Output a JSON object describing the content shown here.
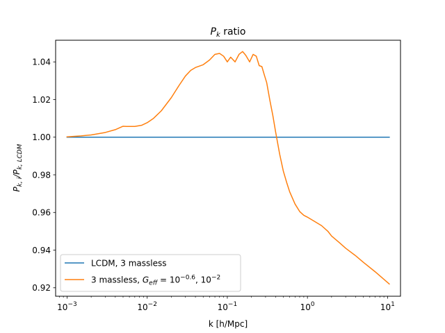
{
  "chart_data": {
    "type": "line",
    "title_main": "P",
    "title_sub": "k",
    "title_rest": " ratio",
    "xlabel": "k [h/Mpc]",
    "ylabel_main": "P",
    "ylabel_sub": "k, i",
    "ylabel_mid": "/P",
    "ylabel_sub2": "k, LCDM",
    "xscale": "log",
    "xlim": [
      0.00072,
      14.5
    ],
    "ylim": [
      0.9155,
      1.0515
    ],
    "xticks": [
      {
        "value": 0.001,
        "base": "10",
        "exp": "−3"
      },
      {
        "value": 0.01,
        "base": "10",
        "exp": "−2"
      },
      {
        "value": 0.1,
        "base": "10",
        "exp": "−1"
      },
      {
        "value": 1,
        "base": "10",
        "exp": "0"
      },
      {
        "value": 10,
        "base": "10",
        "exp": "1"
      }
    ],
    "yticks": [
      {
        "value": 0.92,
        "label": "0.92"
      },
      {
        "value": 0.94,
        "label": "0.94"
      },
      {
        "value": 0.96,
        "label": "0.96"
      },
      {
        "value": 0.98,
        "label": "0.98"
      },
      {
        "value": 1.0,
        "label": "1.00"
      },
      {
        "value": 1.02,
        "label": "1.02"
      },
      {
        "value": 1.04,
        "label": "1.04"
      }
    ],
    "legend_position": "lower left",
    "series": [
      {
        "name": "LCDM, 3 massless",
        "color": "#1f77b4",
        "x": [
          0.001,
          10.5
        ],
        "y": [
          1.0,
          1.0
        ]
      },
      {
        "name_prefix": "3 massless, ",
        "name_math": "G",
        "name_math_sub": "eff",
        "name_eq": " = 10",
        "name_exp1": "−0.6",
        "name_sep": ", 10",
        "name_exp2": "−2",
        "color": "#ff7f0e",
        "x": [
          0.001,
          0.0015,
          0.002,
          0.003,
          0.004,
          0.005,
          0.0055,
          0.007,
          0.0085,
          0.01,
          0.012,
          0.015,
          0.02,
          0.025,
          0.03,
          0.035,
          0.04,
          0.05,
          0.06,
          0.07,
          0.08,
          0.09,
          0.1,
          0.11,
          0.125,
          0.14,
          0.155,
          0.17,
          0.19,
          0.21,
          0.23,
          0.25,
          0.27,
          0.29,
          0.31,
          0.34,
          0.37,
          0.4,
          0.45,
          0.5,
          0.55,
          0.6,
          0.7,
          0.8,
          0.9,
          1.0,
          1.2,
          1.5,
          1.8,
          2.0,
          2.5,
          3.0,
          4.0,
          5.0,
          7.0,
          10.5
        ],
        "y": [
          1.0002,
          1.0007,
          1.0012,
          1.0025,
          1.004,
          1.0058,
          1.0057,
          1.0057,
          1.0063,
          1.0077,
          1.01,
          1.014,
          1.021,
          1.0275,
          1.0325,
          1.0355,
          1.037,
          1.0385,
          1.041,
          1.044,
          1.0445,
          1.043,
          1.04,
          1.0425,
          1.04,
          1.044,
          1.0455,
          1.0435,
          1.04,
          1.044,
          1.043,
          1.038,
          1.0375,
          1.033,
          1.029,
          1.0195,
          1.0115,
          1.003,
          0.991,
          0.982,
          0.976,
          0.971,
          0.9645,
          0.9605,
          0.9585,
          0.9575,
          0.9555,
          0.953,
          0.95,
          0.9475,
          0.944,
          0.941,
          0.937,
          0.9335,
          0.9285,
          0.922
        ]
      }
    ]
  }
}
